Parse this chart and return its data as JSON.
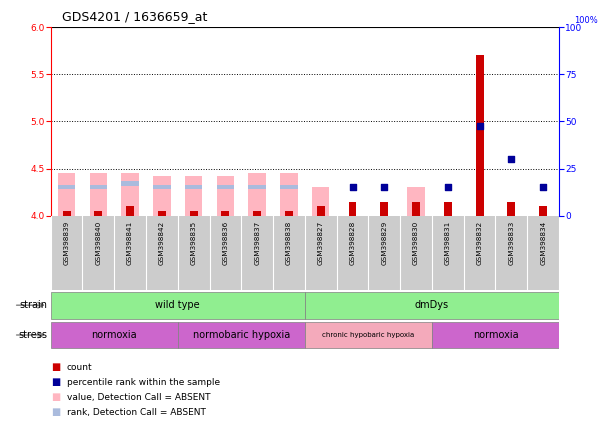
{
  "title": "GDS4201 / 1636659_at",
  "samples": [
    "GSM398839",
    "GSM398840",
    "GSM398841",
    "GSM398842",
    "GSM398835",
    "GSM398836",
    "GSM398837",
    "GSM398838",
    "GSM398827",
    "GSM398828",
    "GSM398829",
    "GSM398830",
    "GSM398831",
    "GSM398832",
    "GSM398833",
    "GSM398834"
  ],
  "count_values": [
    4.05,
    4.05,
    4.1,
    4.05,
    4.05,
    4.05,
    4.05,
    4.05,
    4.1,
    4.15,
    4.15,
    4.15,
    4.15,
    5.7,
    4.15,
    4.1
  ],
  "percentile_values": [
    null,
    null,
    null,
    null,
    null,
    null,
    null,
    null,
    null,
    4.3,
    4.3,
    null,
    4.3,
    4.95,
    4.6,
    4.3
  ],
  "value_absent": [
    4.45,
    4.45,
    4.45,
    4.42,
    4.42,
    4.42,
    4.45,
    4.45,
    4.3,
    null,
    null,
    4.3,
    null,
    null,
    null,
    null
  ],
  "rank_absent": [
    4.28,
    4.28,
    4.32,
    4.28,
    4.28,
    4.28,
    4.28,
    4.28,
    null,
    null,
    null,
    null,
    null,
    null,
    null,
    null
  ],
  "ylim_left": [
    4.0,
    6.0
  ],
  "ylim_right": [
    0,
    100
  ],
  "yticks_left": [
    4.0,
    4.5,
    5.0,
    5.5,
    6.0
  ],
  "yticks_right": [
    0,
    25,
    50,
    75,
    100
  ],
  "grid_lines": [
    4.5,
    5.0,
    5.5
  ],
  "strain_groups": [
    {
      "label": "wild type",
      "start": 0,
      "end": 8,
      "color": "#90EE90"
    },
    {
      "label": "dmDys",
      "start": 8,
      "end": 16,
      "color": "#90EE90"
    }
  ],
  "stress_groups": [
    {
      "label": "normoxia",
      "start": 0,
      "end": 4,
      "color": "#CC66CC"
    },
    {
      "label": "normobaric hypoxia",
      "start": 4,
      "end": 8,
      "color": "#CC66CC"
    },
    {
      "label": "chronic hypobaric hypoxia",
      "start": 8,
      "end": 12,
      "color": "#F4AABB"
    },
    {
      "label": "normoxia",
      "start": 12,
      "end": 16,
      "color": "#CC66CC"
    }
  ],
  "color_count": "#CC0000",
  "color_percentile": "#000099",
  "color_value_absent": "#FFB6C1",
  "color_rank_absent": "#AABBDD",
  "bar_width": 0.55,
  "count_bar_width": 0.25,
  "dot_size": 18,
  "legend_items": [
    {
      "color": "#CC0000",
      "label": "count"
    },
    {
      "color": "#000099",
      "label": "percentile rank within the sample"
    },
    {
      "color": "#FFB6C1",
      "label": "value, Detection Call = ABSENT"
    },
    {
      "color": "#AABBDD",
      "label": "rank, Detection Call = ABSENT"
    }
  ]
}
